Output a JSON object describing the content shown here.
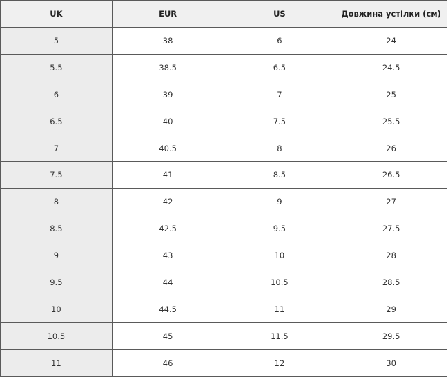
{
  "table": {
    "header": [
      "UK",
      "EUR",
      "US",
      "Довжина устілки (см)"
    ],
    "rows": [
      [
        "5",
        "38",
        "6",
        "24"
      ],
      [
        "5.5",
        "38.5",
        "6.5",
        "24.5"
      ],
      [
        "6",
        "39",
        "7",
        "25"
      ],
      [
        "6.5",
        "40",
        "7.5",
        "25.5"
      ],
      [
        "7",
        "40.5",
        "8",
        "26"
      ],
      [
        "7.5",
        "41",
        "8.5",
        "26.5"
      ],
      [
        "8",
        "42",
        "9",
        "27"
      ],
      [
        "8.5",
        "42.5",
        "9.5",
        "27.5"
      ],
      [
        "9",
        "43",
        "10",
        "28"
      ],
      [
        "9.5",
        "44",
        "10.5",
        "28.5"
      ],
      [
        "10",
        "44.5",
        "11",
        "29"
      ],
      [
        "10.5",
        "45",
        "11.5",
        "29.5"
      ],
      [
        "11",
        "46",
        "12",
        "30"
      ]
    ]
  }
}
